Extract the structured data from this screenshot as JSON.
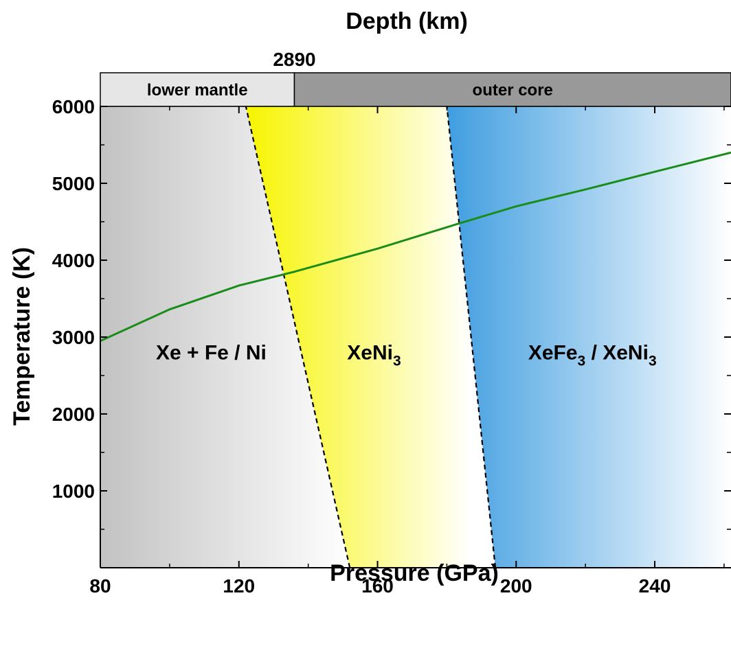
{
  "chart_data": {
    "type": "area",
    "title": "",
    "xlabel": "Pressure (GPa)",
    "ylabel": "Temperature (K)",
    "top_axis_label": "Depth (km)",
    "xlim": [
      80,
      262
    ],
    "ylim": [
      0,
      6000
    ],
    "x_ticks": [
      80,
      120,
      160,
      200,
      240
    ],
    "y_ticks": [
      1000,
      2000,
      3000,
      4000,
      5000,
      6000
    ],
    "depth_marker": {
      "label": "2890",
      "pressure": 136
    },
    "depth_bands": [
      {
        "label": "lower mantle",
        "x_range": [
          80,
          136
        ],
        "color": "#e6e6e6"
      },
      {
        "label": "outer core",
        "x_range": [
          136,
          262
        ],
        "color": "#999999"
      }
    ],
    "boundaries": [
      {
        "name": "Xe + Fe / Ni – XeNi3",
        "points": [
          [
            152,
            0
          ],
          [
            122,
            6000
          ]
        ]
      },
      {
        "name": "XeNi3 – XeFe3 / XeNi3",
        "points": [
          [
            194,
            0
          ],
          [
            180,
            6000
          ]
        ]
      }
    ],
    "series": [
      {
        "x": [
          80,
          100,
          120,
          136,
          160,
          183,
          200,
          220,
          240,
          262
        ],
        "y": [
          2950,
          3360,
          3670,
          3850,
          4150,
          4470,
          4700,
          4920,
          5150,
          5400
        ]
      }
    ],
    "regions": [
      {
        "id": "xe-fe-ni",
        "parts": [
          "Xe + Fe / Ni"
        ],
        "x": 112,
        "y": 2800
      },
      {
        "id": "xeni3",
        "parts": [
          "XeNi",
          "3"
        ],
        "x": 159,
        "y": 2800
      },
      {
        "id": "xefe3-xeni3",
        "parts": [
          "XeFe",
          "3",
          " / XeNi",
          "3"
        ],
        "x": 222,
        "y": 2800
      }
    ],
    "colors": {
      "gray": "#c2c2c2",
      "yellow": "#f7f400",
      "blue": "#4aa3e3",
      "line": "#1a8c1a",
      "lower_mantle_band": "#e6e6e6",
      "outer_core_band": "#999999"
    },
    "grid": false,
    "legend": "none"
  }
}
